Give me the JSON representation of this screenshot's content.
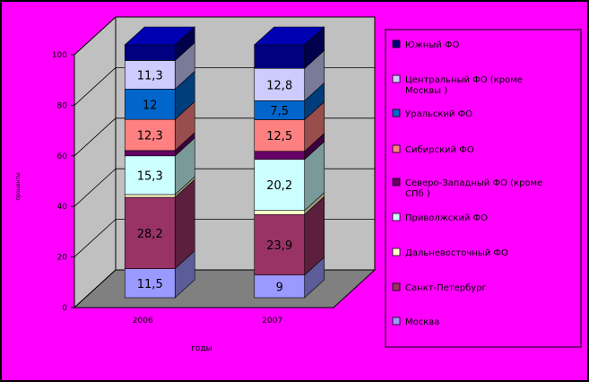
{
  "chart_data": {
    "type": "bar",
    "stacked": true,
    "three_d": true,
    "percent": true,
    "title": "",
    "xlabel": "годы",
    "ylabel": "проценты",
    "ylim": [
      0,
      100
    ],
    "yticks": [
      "0",
      "20",
      "40",
      "60",
      "80",
      "100"
    ],
    "categories": [
      "2006",
      "2007"
    ],
    "grid": true,
    "legend_position": "right",
    "series": [
      {
        "name": "Москва",
        "values": [
          11.5,
          9
        ],
        "labels": [
          "11,5",
          "9"
        ],
        "color": "#9999ff"
      },
      {
        "name": "Санкт-Петербург",
        "values": [
          28.2,
          23.9
        ],
        "labels": [
          "28,2",
          "23,9"
        ],
        "color": "#993366"
      },
      {
        "name": "Дальневосточный ФО",
        "values": [
          1.1,
          1.6
        ],
        "labels": [
          "",
          ""
        ],
        "color": "#ffffcc"
      },
      {
        "name": "Приволжский ФО",
        "values": [
          15.3,
          20.2
        ],
        "labels": [
          "15,3",
          "20,2"
        ],
        "color": "#ccffff"
      },
      {
        "name": "Северо-Западный ФО (кроме СПб )",
        "values": [
          2.1,
          3.2
        ],
        "labels": [
          "",
          ""
        ],
        "color": "#660066"
      },
      {
        "name": "Сибирский ФО",
        "values": [
          12.3,
          12.5
        ],
        "labels": [
          "12,3",
          "12,5"
        ],
        "color": "#ff8080"
      },
      {
        "name": "Уральский ФО",
        "values": [
          12,
          7.5
        ],
        "labels": [
          "12",
          "7,5"
        ],
        "color": "#0066cc"
      },
      {
        "name": "Центральный ФО (кроме Москвы )",
        "values": [
          11.3,
          12.8
        ],
        "labels": [
          "11,3",
          "12,8"
        ],
        "color": "#ccccff"
      },
      {
        "name": "Южный ФО",
        "values": [
          6.2,
          9.3
        ],
        "labels": [
          "",
          ""
        ],
        "color": "#000080"
      }
    ]
  },
  "colors": {
    "background": "#ff00ff",
    "wall": "#c0c0c0",
    "floor": "#808080",
    "gridline": "#000000",
    "legend_box": "#ff00ff"
  }
}
